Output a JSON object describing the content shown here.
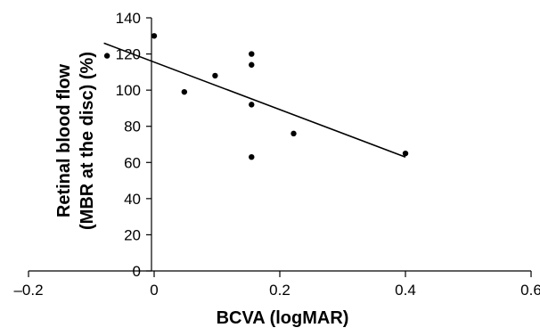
{
  "chart_data": {
    "type": "scatter",
    "title": "",
    "xlabel": "BCVA (logMAR)",
    "ylabel_line1": "Retinal blood flow",
    "ylabel_line2": "(MBR at the disc) (%)",
    "xlim": [
      -0.2,
      0.6
    ],
    "ylim": [
      0,
      140
    ],
    "x_ticks": [
      -0.2,
      0,
      0.2,
      0.4,
      0.6
    ],
    "x_tick_labels": [
      "–0.2",
      "0",
      "0.2",
      "0.4",
      "0.6"
    ],
    "y_ticks": [
      0,
      20,
      40,
      60,
      80,
      100,
      120,
      140
    ],
    "y_tick_labels": [
      "0",
      "20",
      "40",
      "60",
      "80",
      "100",
      "120",
      "140"
    ],
    "grid": false,
    "legend": "none",
    "point_color": "#000000",
    "trendline": {
      "x": [
        -0.08,
        0.4
      ],
      "y": [
        126,
        63
      ]
    },
    "points": [
      {
        "x": -0.075,
        "y": 119
      },
      {
        "x": 0.0,
        "y": 130
      },
      {
        "x": 0.048,
        "y": 99
      },
      {
        "x": 0.097,
        "y": 108
      },
      {
        "x": 0.155,
        "y": 120
      },
      {
        "x": 0.155,
        "y": 114
      },
      {
        "x": 0.155,
        "y": 92
      },
      {
        "x": 0.155,
        "y": 63
      },
      {
        "x": 0.222,
        "y": 76
      },
      {
        "x": 0.4,
        "y": 65
      }
    ]
  }
}
